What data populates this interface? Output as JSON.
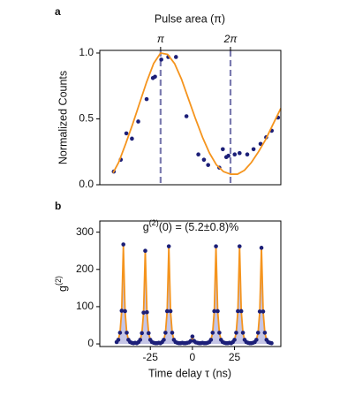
{
  "chart_data": [
    {
      "type": "scatter",
      "panel": "a",
      "x2label": "Pulse area (π)",
      "ylabel": "Normalized Counts",
      "xlim": [
        0.13,
        2.72
      ],
      "ylim": [
        0,
        1.02
      ],
      "x2ticks": [
        {
          "value": 1,
          "label": "π"
        },
        {
          "value": 2,
          "label": "2π"
        }
      ],
      "x2grid": "dashed",
      "grid_color": "#7b7bb0",
      "yticks": [
        {
          "value": 0,
          "label": "0.0"
        },
        0.5,
        {
          "value": 1,
          "label": "1.0"
        }
      ],
      "series": [
        {
          "mode": "markers",
          "color": "#1c1f78",
          "x": [
            0.33,
            0.43,
            0.51,
            0.59,
            0.68,
            0.8,
            0.89,
            0.92,
            1.01,
            1.11,
            1.22,
            1.37,
            1.54,
            1.62,
            1.68,
            1.84,
            1.89,
            1.94,
            1.97,
            2.06,
            2.13,
            2.24,
            2.33,
            2.43,
            2.51,
            2.59,
            2.68
          ],
          "values": [
            0.1,
            0.19,
            0.39,
            0.35,
            0.48,
            0.65,
            0.81,
            0.82,
            0.95,
            0.97,
            0.97,
            0.52,
            0.23,
            0.19,
            0.15,
            0.13,
            0.27,
            0.21,
            0.22,
            0.23,
            0.24,
            0.23,
            0.27,
            0.31,
            0.36,
            0.41,
            0.51
          ]
        },
        {
          "mode": "line",
          "color": "#f5941d",
          "x": [
            0.32,
            0.4,
            0.5,
            0.6,
            0.7,
            0.8,
            0.9,
            1.0,
            1.1,
            1.2,
            1.3,
            1.4,
            1.5,
            1.6,
            1.7,
            1.8,
            1.9,
            2.0,
            2.1,
            2.2,
            2.3,
            2.4,
            2.5,
            2.6,
            2.72
          ],
          "values": [
            0.09,
            0.17,
            0.31,
            0.46,
            0.62,
            0.78,
            0.92,
            1.0,
            0.99,
            0.92,
            0.8,
            0.65,
            0.5,
            0.36,
            0.24,
            0.15,
            0.1,
            0.08,
            0.08,
            0.11,
            0.17,
            0.25,
            0.34,
            0.45,
            0.58
          ]
        }
      ]
    },
    {
      "type": "scatter",
      "panel": "b",
      "xlabel": "Time delay τ (ns)",
      "ylabel": [
        "g",
        "(2)"
      ],
      "annotation": [
        "g",
        "(2)",
        "(0) = (5.2±0.8)%"
      ],
      "xlim": [
        -55,
        52.5
      ],
      "ylim": [
        -7,
        330
      ],
      "xticks": [
        -25,
        0,
        25
      ],
      "yticks": [
        0,
        100,
        200,
        300
      ],
      "series": [
        {
          "mode": "line",
          "color": "#f5941d",
          "fill": "#c5c5e6",
          "x": [
            -45,
            -44,
            -43,
            -42,
            -41,
            -40,
            -39,
            -38,
            -37,
            -36,
            -35,
            -34,
            -33,
            -32,
            -31,
            -30,
            -29,
            -28,
            -27,
            -26,
            -25,
            -24,
            -23,
            -22,
            -21,
            -20,
            -19,
            -18,
            -17,
            -16,
            -15,
            -14,
            -13,
            -12,
            -11,
            -10,
            -9,
            -8,
            -7,
            -6,
            -5,
            -4,
            -3,
            -2,
            -1,
            0,
            1,
            2,
            3,
            4,
            5,
            6,
            7,
            8,
            9,
            10,
            11,
            12,
            13,
            14,
            15,
            16,
            17,
            18,
            19,
            20,
            21,
            22,
            23,
            24,
            25,
            26,
            27,
            28,
            29,
            30,
            31,
            32,
            33,
            34,
            35,
            36,
            37,
            38,
            39,
            40,
            41,
            42,
            43,
            44,
            45,
            46,
            47
          ],
          "values": [
            5,
            11,
            30,
            88,
            262,
            88,
            30,
            11,
            5,
            3,
            2,
            2,
            2,
            5,
            11,
            29,
            84,
            250,
            84,
            29,
            11,
            5,
            3,
            2,
            2,
            2,
            2,
            5,
            11,
            30,
            88,
            262,
            88,
            30,
            11,
            5,
            3,
            2,
            2,
            2,
            2,
            2,
            3,
            4,
            7,
            17,
            7,
            4,
            3,
            2,
            2,
            2,
            2,
            2,
            3,
            5,
            11,
            30,
            88,
            262,
            88,
            30,
            11,
            5,
            3,
            2,
            2,
            2,
            2,
            5,
            11,
            30,
            88,
            262,
            88,
            30,
            11,
            5,
            3,
            2,
            2,
            3,
            5,
            11,
            30,
            87,
            258,
            87,
            30,
            11,
            5,
            3,
            2
          ]
        },
        {
          "mode": "markers",
          "color": "#1c1f78",
          "x": [
            -45,
            -44,
            -43,
            -42,
            -41,
            -40,
            -39,
            -38,
            -37,
            -36,
            -35,
            -34,
            -33,
            -32,
            -31,
            -30,
            -29,
            -28,
            -27,
            -26,
            -25,
            -24,
            -23,
            -22,
            -21,
            -20,
            -19,
            -18,
            -17,
            -16,
            -15,
            -14,
            -13,
            -12,
            -11,
            -10,
            -9,
            -8,
            -7,
            -6,
            -5,
            -4,
            -3,
            -2,
            -1,
            0,
            1,
            2,
            3,
            4,
            5,
            6,
            7,
            8,
            9,
            10,
            11,
            12,
            13,
            14,
            15,
            16,
            17,
            18,
            19,
            20,
            21,
            22,
            23,
            24,
            25,
            26,
            27,
            28,
            29,
            30,
            31,
            32,
            33,
            34,
            35,
            36,
            37,
            38,
            39,
            40,
            41,
            42,
            43,
            44,
            45,
            46,
            47
          ],
          "values": [
            5,
            11,
            30,
            89,
            267,
            88,
            30,
            11,
            5,
            3,
            2,
            3,
            2,
            5,
            11,
            29,
            84,
            250,
            85,
            29,
            11,
            5,
            3,
            2,
            2,
            3,
            2,
            5,
            11,
            30,
            88,
            262,
            88,
            30,
            11,
            5,
            3,
            2,
            2,
            3,
            2,
            2,
            3,
            4,
            8,
            20,
            8,
            4,
            3,
            2,
            2,
            3,
            2,
            2,
            3,
            5,
            11,
            30,
            88,
            262,
            88,
            30,
            11,
            5,
            3,
            2,
            2,
            3,
            2,
            5,
            11,
            30,
            88,
            262,
            88,
            30,
            11,
            5,
            3,
            2,
            2,
            3,
            5,
            11,
            30,
            87,
            258,
            87,
            30,
            11,
            5,
            3,
            2
          ]
        }
      ]
    }
  ]
}
